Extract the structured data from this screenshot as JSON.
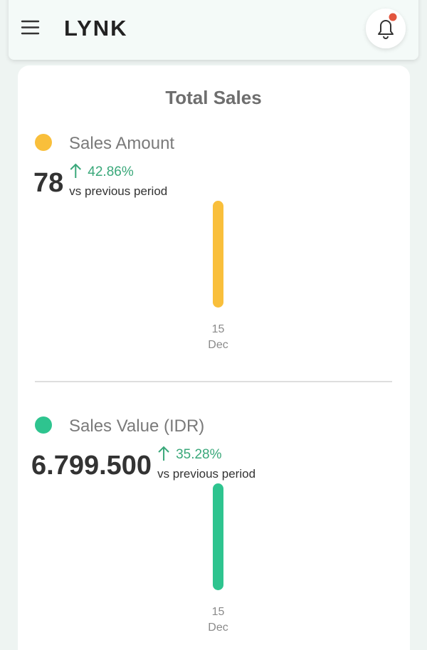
{
  "header": {
    "logo": "LYNK"
  },
  "card": {
    "title": "Total Sales"
  },
  "chart_data": [
    {
      "type": "bar",
      "title": "Sales Amount",
      "color": "#f9bf3b",
      "change": "42.86%",
      "comparison": "vs previous period",
      "categories": [
        "15"
      ],
      "category_months": [
        "Dec"
      ],
      "values": [
        78
      ],
      "ylim": [
        0,
        78
      ]
    },
    {
      "type": "bar",
      "title": "Sales Value (IDR)",
      "color": "#2ec48f",
      "change": "35.28%",
      "comparison": "vs previous period",
      "categories": [
        "15"
      ],
      "category_months": [
        "Dec"
      ],
      "values": [
        6799500
      ],
      "value_labels": [
        "6.799.500"
      ],
      "ylim": [
        0,
        6799500
      ]
    }
  ]
}
